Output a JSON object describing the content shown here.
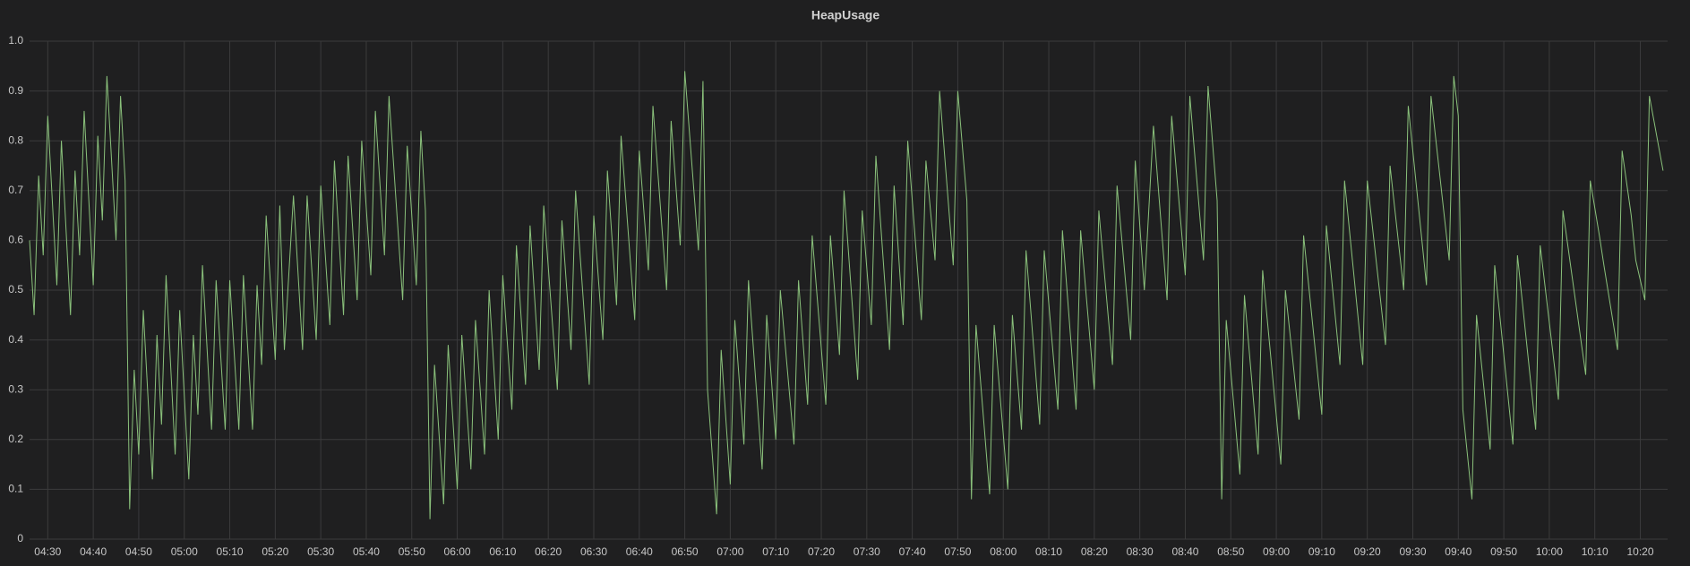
{
  "chart_data": {
    "type": "line",
    "title": "HeapUsage",
    "x": [
      "04:26",
      "04:27",
      "04:28",
      "04:29",
      "04:30",
      "04:32",
      "04:33",
      "04:35",
      "04:36",
      "04:37",
      "04:38",
      "04:40",
      "04:41",
      "04:42",
      "04:43",
      "04:45",
      "04:46",
      "04:47",
      "04:48",
      "04:49",
      "04:50",
      "04:51",
      "04:53",
      "04:54",
      "04:55",
      "04:56",
      "04:58",
      "04:59",
      "05:01",
      "05:02",
      "05:03",
      "05:04",
      "05:06",
      "05:07",
      "05:09",
      "05:10",
      "05:12",
      "05:13",
      "05:15",
      "05:16",
      "05:17",
      "05:18",
      "05:20",
      "05:21",
      "05:22",
      "05:24",
      "05:26",
      "05:27",
      "05:29",
      "05:30",
      "05:32",
      "05:33",
      "05:35",
      "05:36",
      "05:38",
      "05:39",
      "05:41",
      "05:42",
      "05:44",
      "05:45",
      "05:48",
      "05:49",
      "05:51",
      "05:52",
      "05:53",
      "05:54",
      "05:55",
      "05:57",
      "05:58",
      "06:00",
      "06:01",
      "06:03",
      "06:04",
      "06:06",
      "06:07",
      "06:09",
      "06:10",
      "06:12",
      "06:13",
      "06:15",
      "06:16",
      "06:18",
      "06:19",
      "06:22",
      "06:23",
      "06:25",
      "06:26",
      "06:29",
      "06:30",
      "06:32",
      "06:33",
      "06:35",
      "06:36",
      "06:39",
      "06:40",
      "06:42",
      "06:43",
      "06:46",
      "06:47",
      "06:49",
      "06:50",
      "06:53",
      "06:54",
      "06:55",
      "06:57",
      "06:58",
      "07:00",
      "07:01",
      "07:03",
      "07:04",
      "07:07",
      "07:08",
      "07:10",
      "07:11",
      "07:14",
      "07:15",
      "07:17",
      "07:18",
      "07:21",
      "07:22",
      "07:24",
      "07:25",
      "07:28",
      "07:29",
      "07:31",
      "07:32",
      "07:35",
      "07:36",
      "07:38",
      "07:39",
      "07:42",
      "07:43",
      "07:45",
      "07:46",
      "07:49",
      "07:50",
      "07:52",
      "07:53",
      "07:54",
      "07:57",
      "07:58",
      "08:01",
      "08:02",
      "08:04",
      "08:05",
      "08:08",
      "08:09",
      "08:12",
      "08:13",
      "08:16",
      "08:17",
      "08:20",
      "08:21",
      "08:24",
      "08:25",
      "08:28",
      "08:29",
      "08:31",
      "08:33",
      "08:36",
      "08:37",
      "08:40",
      "08:41",
      "08:44",
      "08:45",
      "08:47",
      "08:48",
      "08:49",
      "08:52",
      "08:53",
      "08:56",
      "08:57",
      "09:01",
      "09:02",
      "09:05",
      "09:06",
      "09:10",
      "09:11",
      "09:14",
      "09:15",
      "09:19",
      "09:20",
      "09:24",
      "09:25",
      "09:28",
      "09:29",
      "09:33",
      "09:34",
      "09:38",
      "09:39",
      "09:40",
      "09:41",
      "09:43",
      "09:44",
      "09:47",
      "09:48",
      "09:52",
      "09:53",
      "09:57",
      "09:58",
      "10:02",
      "10:03",
      "10:08",
      "10:09",
      "10:11",
      "10:12",
      "10:15",
      "10:16",
      "10:18",
      "10:19",
      "10:21",
      "10:22",
      "10:23",
      "10:25"
    ],
    "series": [
      {
        "name": "HeapUsage",
        "color": "#8ac17b",
        "values": [
          0.6,
          0.45,
          0.73,
          0.57,
          0.85,
          0.51,
          0.8,
          0.45,
          0.74,
          0.57,
          0.86,
          0.51,
          0.81,
          0.64,
          0.93,
          0.6,
          0.89,
          0.72,
          0.06,
          0.34,
          0.17,
          0.46,
          0.12,
          0.41,
          0.23,
          0.53,
          0.17,
          0.46,
          0.12,
          0.41,
          0.25,
          0.55,
          0.22,
          0.52,
          0.22,
          0.52,
          0.22,
          0.53,
          0.22,
          0.51,
          0.35,
          0.65,
          0.36,
          0.67,
          0.38,
          0.69,
          0.38,
          0.69,
          0.4,
          0.71,
          0.43,
          0.76,
          0.45,
          0.77,
          0.48,
          0.8,
          0.53,
          0.86,
          0.57,
          0.89,
          0.48,
          0.79,
          0.51,
          0.82,
          0.66,
          0.04,
          0.35,
          0.07,
          0.39,
          0.1,
          0.41,
          0.14,
          0.44,
          0.17,
          0.5,
          0.2,
          0.53,
          0.26,
          0.59,
          0.31,
          0.63,
          0.34,
          0.67,
          0.3,
          0.64,
          0.38,
          0.7,
          0.31,
          0.65,
          0.4,
          0.74,
          0.47,
          0.81,
          0.44,
          0.78,
          0.54,
          0.87,
          0.5,
          0.84,
          0.59,
          0.94,
          0.58,
          0.92,
          0.3,
          0.05,
          0.38,
          0.11,
          0.44,
          0.19,
          0.52,
          0.14,
          0.45,
          0.2,
          0.5,
          0.19,
          0.52,
          0.27,
          0.61,
          0.27,
          0.61,
          0.37,
          0.7,
          0.32,
          0.66,
          0.43,
          0.77,
          0.38,
          0.71,
          0.43,
          0.8,
          0.44,
          0.76,
          0.56,
          0.9,
          0.55,
          0.9,
          0.68,
          0.08,
          0.43,
          0.09,
          0.43,
          0.1,
          0.45,
          0.22,
          0.58,
          0.23,
          0.58,
          0.26,
          0.62,
          0.26,
          0.62,
          0.3,
          0.66,
          0.35,
          0.71,
          0.4,
          0.76,
          0.5,
          0.83,
          0.48,
          0.85,
          0.53,
          0.89,
          0.56,
          0.91,
          0.68,
          0.08,
          0.44,
          0.13,
          0.49,
          0.17,
          0.54,
          0.15,
          0.5,
          0.24,
          0.61,
          0.25,
          0.63,
          0.35,
          0.72,
          0.35,
          0.72,
          0.39,
          0.75,
          0.5,
          0.87,
          0.51,
          0.89,
          0.56,
          0.93,
          0.85,
          0.26,
          0.08,
          0.45,
          0.18,
          0.55,
          0.19,
          0.57,
          0.22,
          0.59,
          0.28,
          0.66,
          0.33,
          0.72,
          0.61,
          0.55,
          0.38,
          0.78,
          0.65,
          0.56,
          0.48,
          0.89,
          0.84,
          0.74
        ]
      }
    ],
    "xlim": [
      "04:26",
      "10:26"
    ],
    "xticks": [
      "04:30",
      "04:40",
      "04:50",
      "05:00",
      "05:10",
      "05:20",
      "05:30",
      "05:40",
      "05:50",
      "06:00",
      "06:10",
      "06:20",
      "06:30",
      "06:40",
      "06:50",
      "07:00",
      "07:10",
      "07:20",
      "07:30",
      "07:40",
      "07:50",
      "08:00",
      "08:10",
      "08:20",
      "08:30",
      "08:40",
      "08:50",
      "09:00",
      "09:10",
      "09:20",
      "09:30",
      "09:40",
      "09:50",
      "10:00",
      "10:10",
      "10:20"
    ],
    "ylim": [
      0,
      1
    ],
    "yticks": [
      0,
      0.1,
      0.2,
      0.3,
      0.4,
      0.5,
      0.6,
      0.7,
      0.8,
      0.9,
      {
        "value": 1,
        "label": "1.0"
      }
    ],
    "grid": true
  }
}
